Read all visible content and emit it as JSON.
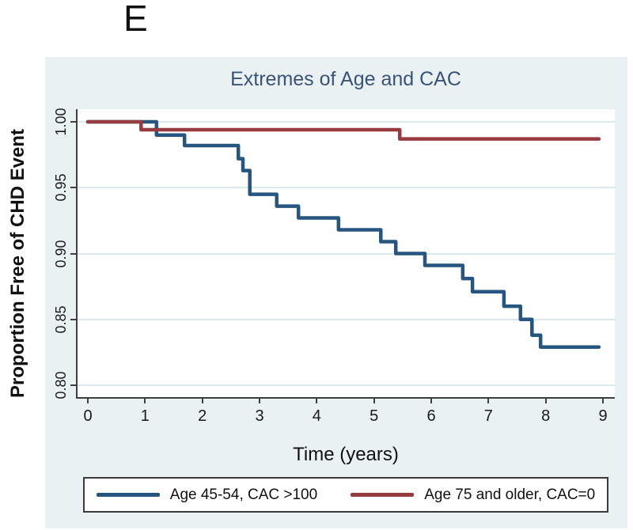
{
  "page": {
    "panel_label": "E"
  },
  "chart_data": {
    "type": "line",
    "subtype": "kaplan-meier-step",
    "title": "Extremes of Age and CAC",
    "xlabel": "Time (years)",
    "ylabel": "Proportion Free of CHD Event",
    "xlim": [
      0,
      9
    ],
    "ylim": [
      0.8,
      1.0
    ],
    "x_ticks": [
      0,
      1,
      2,
      3,
      4,
      5,
      6,
      7,
      8,
      9
    ],
    "y_ticks": [
      1.0,
      0.95,
      0.9,
      0.85,
      0.8
    ],
    "y_tick_labels": [
      "1.00",
      "0.95",
      "0.90",
      "0.85",
      "0.80"
    ],
    "grid": true,
    "legend_position": "bottom",
    "colors": {
      "panel_bg": "#e9f1f3",
      "plot_bg": "#ffffff",
      "grid": "#dce9ec",
      "axis": "#3f3f3f",
      "title": "#3b5377"
    },
    "series": [
      {
        "name": "Age 45-54, CAC >100",
        "color": "#26567f",
        "step": true,
        "x": [
          0,
          1.2,
          1.69,
          2.63,
          2.71,
          2.83,
          3.3,
          3.68,
          4.38,
          5.12,
          5.38,
          5.89,
          6.55,
          6.72,
          7.27,
          7.56,
          7.76,
          7.91,
          8.93
        ],
        "y": [
          1.0,
          0.99,
          0.982,
          0.972,
          0.963,
          0.945,
          0.936,
          0.927,
          0.918,
          0.909,
          0.9,
          0.891,
          0.881,
          0.871,
          0.86,
          0.85,
          0.838,
          0.829,
          0.829
        ]
      },
      {
        "name": "Age 75 and older, CAC=0",
        "color": "#963b40",
        "step": true,
        "x": [
          0,
          0.93,
          5.45,
          8.93
        ],
        "y": [
          1.0,
          0.994,
          0.987,
          0.987
        ]
      }
    ]
  }
}
